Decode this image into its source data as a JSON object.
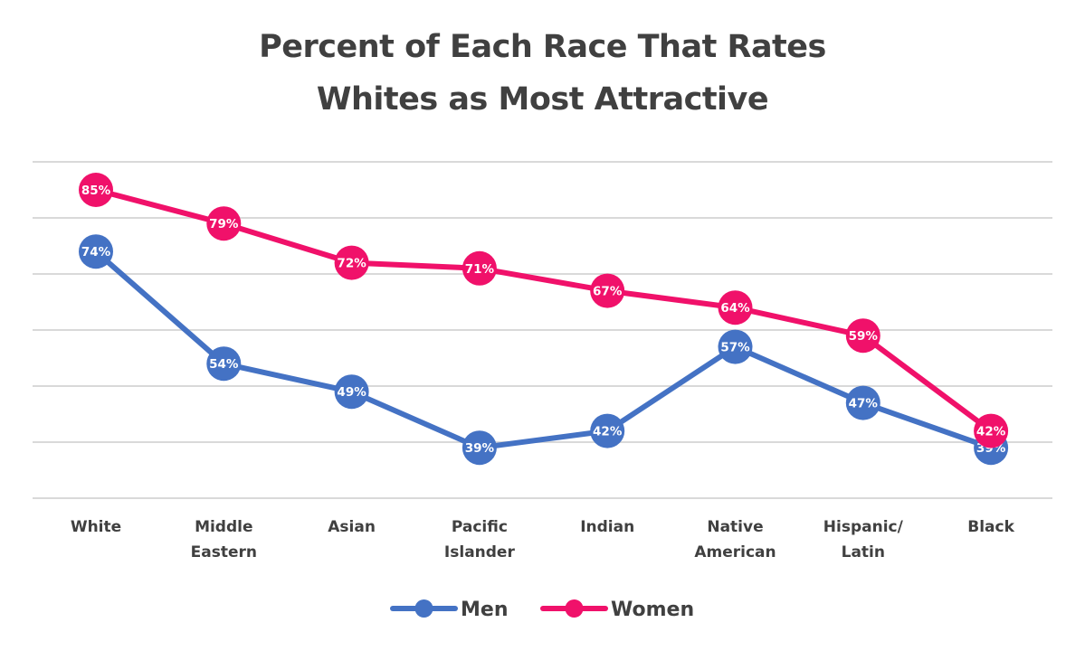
{
  "chart_data": {
    "type": "line",
    "title_lines": [
      "Percent of Each Race That Rates",
      "Whites as Most Attractive"
    ],
    "categories": [
      [
        "White"
      ],
      [
        "Middle",
        "Eastern"
      ],
      [
        "Asian"
      ],
      [
        "Pacific",
        "Islander"
      ],
      [
        "Indian"
      ],
      [
        "Native",
        "American"
      ],
      [
        "Hispanic/",
        "Latin"
      ],
      [
        "Black"
      ]
    ],
    "series": [
      {
        "name": "Men",
        "color": "#4472c4",
        "values": [
          74,
          54,
          49,
          39,
          42,
          57,
          47,
          39
        ],
        "labels": [
          "74%",
          "54%",
          "49%",
          "39%",
          "42%",
          "57%",
          "47%",
          "39%"
        ]
      },
      {
        "name": "Women",
        "color": "#f0116a",
        "values": [
          85,
          79,
          72,
          71,
          67,
          64,
          59,
          42
        ],
        "labels": [
          "85%",
          "79%",
          "72%",
          "71%",
          "67%",
          "64%",
          "59%",
          "42%"
        ]
      }
    ],
    "ylim": [
      30,
      90
    ],
    "gridlines": [
      30,
      40,
      50,
      60,
      70,
      80,
      90
    ],
    "y_axis_labels_shown": false,
    "legend_position": "bottom",
    "grid": true
  }
}
